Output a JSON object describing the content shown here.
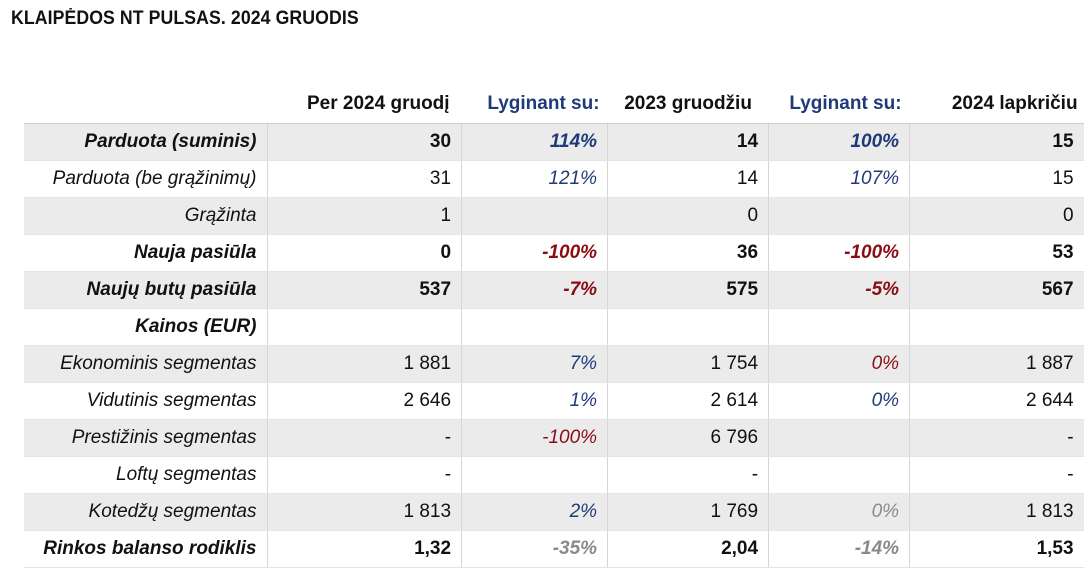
{
  "title": "KLAIPĖDOS NT PULSAS. 2024 GRUODIS",
  "header": [
    "",
    "Per 2024 gruodį",
    "Lyginant su:",
    "2023 gruodžiu",
    "Lyginant su:",
    "2024 lapkričiu"
  ],
  "rows": [
    {
      "label": "Parduota (suminis)",
      "bold": true,
      "shade": true,
      "cells": [
        "30",
        "114%",
        "14",
        "100%",
        "15"
      ],
      "pct_colors": [
        "blue",
        "blue"
      ]
    },
    {
      "label": "Parduota (be grąžinimų)",
      "bold": false,
      "shade": false,
      "cells": [
        "31",
        "121%",
        "14",
        "107%",
        "15"
      ],
      "pct_colors": [
        "blue",
        "blue"
      ]
    },
    {
      "label": "Grąžinta",
      "bold": false,
      "shade": true,
      "cells": [
        "1",
        "",
        "0",
        "",
        "0"
      ],
      "pct_colors": [
        "",
        ""
      ]
    },
    {
      "label": "Nauja pasiūla",
      "bold": true,
      "shade": false,
      "cells": [
        "0",
        "-100%",
        "36",
        "-100%",
        "53"
      ],
      "pct_colors": [
        "red",
        "red"
      ]
    },
    {
      "label": "Naujų butų pasiūla",
      "bold": true,
      "shade": true,
      "cells": [
        "537",
        "-7%",
        "575",
        "-5%",
        "567"
      ],
      "pct_colors": [
        "red",
        "red"
      ]
    },
    {
      "label": "Kainos (EUR)",
      "bold": true,
      "shade": false,
      "cells": [
        "",
        "",
        "",
        "",
        ""
      ],
      "pct_colors": [
        "",
        ""
      ]
    },
    {
      "label": "Ekonominis segmentas",
      "bold": false,
      "shade": true,
      "cells": [
        "1 881",
        "7%",
        "1 754",
        "0%",
        "1 887"
      ],
      "pct_colors": [
        "blue",
        "red"
      ]
    },
    {
      "label": "Vidutinis segmentas",
      "bold": false,
      "shade": false,
      "cells": [
        "2 646",
        "1%",
        "2 614",
        "0%",
        "2 644"
      ],
      "pct_colors": [
        "blue",
        "blue"
      ]
    },
    {
      "label": "Prestižinis segmentas",
      "bold": false,
      "shade": true,
      "cells": [
        "-",
        "-100%",
        "6 796",
        "",
        "-"
      ],
      "pct_colors": [
        "red",
        ""
      ]
    },
    {
      "label": "Loftų segmentas",
      "bold": false,
      "shade": false,
      "cells": [
        "-",
        "",
        "-",
        "",
        "-"
      ],
      "pct_colors": [
        "",
        ""
      ]
    },
    {
      "label": "Kotedžų segmentas",
      "bold": false,
      "shade": true,
      "cells": [
        "1 813",
        "2%",
        "1 769",
        "0%",
        "1 813"
      ],
      "pct_colors": [
        "blue",
        "gray"
      ]
    },
    {
      "label": "Rinkos balanso rodiklis",
      "bold": true,
      "shade": false,
      "cells": [
        "1,32",
        "-35%",
        "2,04",
        "-14%",
        "1,53"
      ],
      "pct_colors": [
        "gray",
        "gray"
      ]
    }
  ]
}
